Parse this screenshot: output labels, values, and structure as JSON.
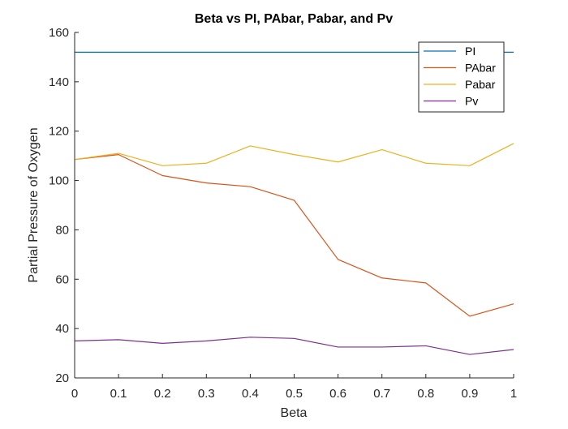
{
  "chart_data": {
    "type": "line",
    "title": "Beta vs PI, PAbar, Pabar, and Pv",
    "xlabel": "Beta",
    "ylabel": "Partial Pressure of Oxygen",
    "xlim": [
      0,
      1
    ],
    "ylim": [
      20,
      160
    ],
    "xticks": [
      0,
      0.1,
      0.2,
      0.3,
      0.4,
      0.5,
      0.6,
      0.7,
      0.8,
      0.9,
      1
    ],
    "xtick_labels": [
      "0",
      "0.1",
      "0.2",
      "0.3",
      "0.4",
      "0.5",
      "0.6",
      "0.7",
      "0.8",
      "0.9",
      "1"
    ],
    "yticks": [
      20,
      40,
      60,
      80,
      100,
      120,
      140,
      160
    ],
    "ytick_labels": [
      "20",
      "40",
      "60",
      "80",
      "100",
      "120",
      "140",
      "160"
    ],
    "grid": false,
    "legend_position": "top-right",
    "x": [
      0,
      0.1,
      0.2,
      0.3,
      0.4,
      0.5,
      0.6,
      0.7,
      0.8,
      0.9,
      1
    ],
    "series": [
      {
        "name": "PI",
        "color": "#0072BD",
        "values": [
          152,
          152,
          152,
          152,
          152,
          152,
          152,
          152,
          152,
          152,
          152
        ]
      },
      {
        "name": "PAbar",
        "color": "#D95319",
        "values": [
          108.5,
          110.5,
          102,
          99,
          97.5,
          92,
          68,
          60.5,
          58.5,
          45,
          50
        ]
      },
      {
        "name": "Pabar",
        "color": "#EDB120",
        "values": [
          108.5,
          111,
          106,
          107,
          114,
          110.5,
          107.5,
          112.5,
          107,
          106,
          115
        ]
      },
      {
        "name": "Pv",
        "color": "#7E2F8E",
        "values": [
          35,
          35.5,
          34,
          35,
          36.5,
          36,
          32.5,
          32.5,
          33,
          29.5,
          31.5
        ]
      }
    ]
  }
}
